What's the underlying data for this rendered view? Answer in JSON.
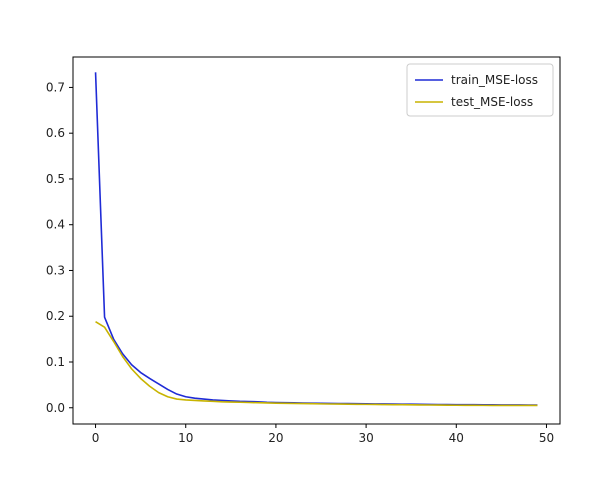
{
  "chart_data": {
    "type": "line",
    "title": "",
    "xlabel": "",
    "ylabel": "",
    "xlim": [
      -2.5,
      51.5
    ],
    "ylim": [
      -0.0355,
      0.7665
    ],
    "x_ticks": [
      0,
      10,
      20,
      30,
      40,
      50
    ],
    "y_ticks": [
      0.0,
      0.1,
      0.2,
      0.3,
      0.4,
      0.5,
      0.6,
      0.7
    ],
    "x_tick_labels": [
      "0",
      "10",
      "20",
      "30",
      "40",
      "50"
    ],
    "y_tick_labels": [
      "0.0",
      "0.1",
      "0.2",
      "0.3",
      "0.4",
      "0.5",
      "0.6",
      "0.7"
    ],
    "legend_position": "top-right",
    "grid": false,
    "series": [
      {
        "name": "train_MSE-loss",
        "color": "#1f2bd6",
        "x": [
          0,
          1,
          2,
          3,
          4,
          5,
          6,
          7,
          8,
          9,
          10,
          11,
          12,
          13,
          14,
          15,
          16,
          17,
          18,
          19,
          20,
          21,
          22,
          23,
          24,
          25,
          26,
          27,
          28,
          29,
          30,
          31,
          32,
          33,
          34,
          35,
          36,
          37,
          38,
          39,
          40,
          41,
          42,
          43,
          44,
          45,
          46,
          47,
          48,
          49
        ],
        "y": [
          0.733,
          0.198,
          0.15,
          0.118,
          0.094,
          0.077,
          0.064,
          0.052,
          0.04,
          0.03,
          0.024,
          0.021,
          0.019,
          0.017,
          0.016,
          0.015,
          0.014,
          0.0135,
          0.013,
          0.012,
          0.0115,
          0.011,
          0.0107,
          0.0104,
          0.0101,
          0.0098,
          0.0095,
          0.0093,
          0.0091,
          0.0089,
          0.0087,
          0.0085,
          0.0083,
          0.0081,
          0.0079,
          0.0077,
          0.0075,
          0.0073,
          0.0071,
          0.0069,
          0.0068,
          0.0067,
          0.0066,
          0.0065,
          0.0064,
          0.0063,
          0.0062,
          0.0061,
          0.006,
          0.006
        ]
      },
      {
        "name": "test_MSE-loss",
        "color": "#c8b400",
        "x": [
          0,
          1,
          2,
          3,
          4,
          5,
          6,
          7,
          8,
          9,
          10,
          11,
          12,
          13,
          14,
          15,
          16,
          17,
          18,
          19,
          20,
          21,
          22,
          23,
          24,
          25,
          26,
          27,
          28,
          29,
          30,
          31,
          32,
          33,
          34,
          35,
          36,
          37,
          38,
          39,
          40,
          41,
          42,
          43,
          44,
          45,
          46,
          47,
          48,
          49
        ],
        "y": [
          0.188,
          0.176,
          0.145,
          0.112,
          0.085,
          0.064,
          0.047,
          0.033,
          0.024,
          0.019,
          0.017,
          0.016,
          0.015,
          0.014,
          0.013,
          0.0125,
          0.012,
          0.0115,
          0.011,
          0.0105,
          0.01,
          0.0097,
          0.0094,
          0.0091,
          0.0088,
          0.0085,
          0.0082,
          0.008,
          0.0078,
          0.0076,
          0.0074,
          0.0072,
          0.007,
          0.0068,
          0.0066,
          0.0064,
          0.0062,
          0.006,
          0.0058,
          0.0056,
          0.0055,
          0.0054,
          0.0053,
          0.0052,
          0.0051,
          0.005,
          0.005,
          0.005,
          0.005,
          0.005
        ]
      }
    ]
  }
}
